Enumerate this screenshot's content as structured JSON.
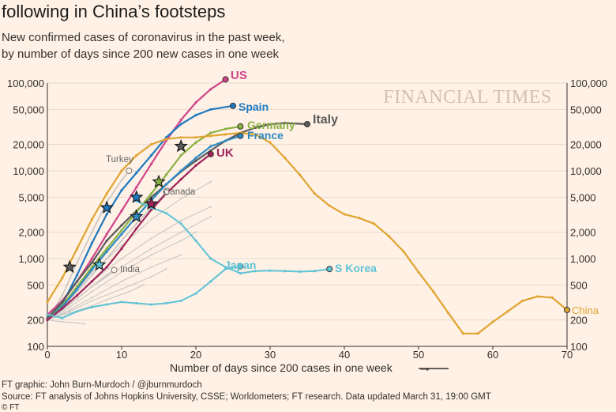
{
  "header": {
    "title": "following in China’s footsteps",
    "subtitle_line1": "New confirmed cases of coronavirus in the past week,",
    "subtitle_line2": "by number of days since 200 new cases in one week"
  },
  "watermark": "FINANCIAL TIMES",
  "footer": {
    "credit": "FT graphic: John Burn-Murdoch / @jburnmurdoch",
    "source": "Source: FT analysis of Johns Hopkins University, CSSE; Worldometers; FT research. Data updated March 31, 19:00 GMT",
    "copyright": "© FT"
  },
  "chart_data": {
    "type": "line",
    "title": "following in China’s footsteps",
    "xlabel": "Number of days since 200 cases in one week",
    "ylabel": "New confirmed cases in the past week",
    "xscale": "linear",
    "yscale": "log",
    "xlim": [
      0,
      70
    ],
    "ylim": [
      100,
      100000
    ],
    "xticks": [
      "0",
      "10",
      "20",
      "30",
      "40",
      "50",
      "60",
      "70"
    ],
    "yticks": [
      "100",
      "200",
      "500",
      "1,000",
      "2,000",
      "5,000",
      "10,000",
      "20,000",
      "50,000",
      "100,000"
    ],
    "ytick_values": [
      100,
      200,
      500,
      1000,
      2000,
      5000,
      10000,
      20000,
      50000,
      100000
    ],
    "grid": true,
    "series": [
      {
        "name": "US",
        "color": "#d0448a",
        "width": 2.2,
        "label": "US",
        "x": [
          0,
          2,
          4,
          6,
          8,
          10,
          12,
          14,
          16,
          18,
          20,
          22,
          24
        ],
        "y": [
          230,
          330,
          550,
          1000,
          1900,
          3500,
          6500,
          12000,
          22000,
          38000,
          60000,
          85000,
          110000
        ]
      },
      {
        "name": "Spain",
        "color": "#1f79c0",
        "width": 2.2,
        "label": "Spain",
        "x": [
          0,
          2,
          4,
          6,
          8,
          10,
          12,
          14,
          16,
          18,
          20,
          22,
          25
        ],
        "y": [
          200,
          300,
          650,
          1500,
          3200,
          6000,
          9500,
          15000,
          24000,
          34000,
          43000,
          50000,
          55000
        ]
      },
      {
        "name": "Italy",
        "color": "#5b5b5b",
        "width": 2.2,
        "label": "Italy",
        "x": [
          0,
          2,
          4,
          6,
          8,
          10,
          12,
          14,
          16,
          18,
          20,
          22,
          24,
          26,
          28,
          30,
          32,
          35
        ],
        "y": [
          210,
          320,
          550,
          900,
          1600,
          2400,
          3500,
          5000,
          7000,
          9800,
          13000,
          17000,
          22000,
          27000,
          31000,
          34000,
          35000,
          34000
        ]
      },
      {
        "name": "Germany",
        "color": "#8bb143",
        "width": 2.2,
        "label": "Germany",
        "x": [
          0,
          2,
          4,
          6,
          8,
          10,
          12,
          14,
          16,
          18,
          20,
          22,
          24,
          26
        ],
        "y": [
          200,
          290,
          480,
          800,
          1300,
          2100,
          3400,
          5500,
          9000,
          15000,
          21000,
          27000,
          30000,
          32000
        ]
      },
      {
        "name": "France",
        "color": "#2d8ac4",
        "width": 2.2,
        "label": "France",
        "x": [
          0,
          2,
          4,
          6,
          8,
          10,
          12,
          14,
          16,
          18,
          20,
          22,
          24,
          26
        ],
        "y": [
          200,
          280,
          450,
          750,
          1200,
          1900,
          3000,
          4600,
          7000,
          10000,
          14000,
          19000,
          22000,
          25000
        ]
      },
      {
        "name": "UK",
        "color": "#a0245c",
        "width": 2.2,
        "label": "UK",
        "x": [
          0,
          2,
          4,
          6,
          8,
          10,
          12,
          14,
          16,
          18,
          20,
          22
        ],
        "y": [
          200,
          270,
          380,
          550,
          800,
          1300,
          2200,
          3600,
          5500,
          8000,
          11500,
          15500
        ]
      },
      {
        "name": "China",
        "color": "#e0a431",
        "width": 2.2,
        "label": "China",
        "x": [
          0,
          2,
          4,
          6,
          8,
          10,
          12,
          14,
          16,
          18,
          20,
          22,
          24,
          26,
          28,
          30,
          32,
          34,
          36,
          38,
          40,
          42,
          44,
          46,
          48,
          50,
          52,
          54,
          56,
          58,
          60,
          62,
          64,
          66,
          68,
          70
        ],
        "y": [
          320,
          600,
          1300,
          2800,
          5500,
          10000,
          15000,
          20000,
          23000,
          24000,
          24000,
          25000,
          26000,
          27000,
          26000,
          21000,
          14000,
          9000,
          5500,
          4000,
          3200,
          2900,
          2500,
          1800,
          1200,
          700,
          420,
          240,
          140,
          140,
          190,
          250,
          330,
          370,
          360,
          260
        ]
      },
      {
        "name": "Japan",
        "color": "#5fc3d6",
        "width": 2.0,
        "label": "Japan",
        "x": [
          12,
          14,
          16,
          18,
          20,
          22,
          24,
          26,
          28,
          30,
          32,
          34,
          36,
          38
        ],
        "y": [
          4500,
          3800,
          3300,
          2500,
          1600,
          1000,
          800,
          680,
          720,
          730,
          720,
          710,
          720,
          760
        ]
      },
      {
        "name": "S Korea",
        "color": "#5fc3d6",
        "width": 2.0,
        "label": "S Korea",
        "x": [
          0,
          2,
          4,
          6,
          8,
          10,
          12,
          14,
          16,
          18,
          20,
          22,
          24,
          26
        ],
        "y": [
          230,
          210,
          250,
          280,
          300,
          320,
          310,
          300,
          310,
          330,
          400,
          550,
          760,
          820
        ]
      },
      {
        "name": "Turkey",
        "color": "#bdbdbd",
        "width": 1.3,
        "label": "Turkey",
        "x": [
          0,
          2,
          4,
          6,
          8,
          10,
          11
        ],
        "y": [
          200,
          380,
          900,
          2000,
          4400,
          7800,
          10000
        ]
      },
      {
        "name": "Canada",
        "color": "#bdbdbd",
        "width": 1.3,
        "label": "Canada",
        "x": [
          0,
          2,
          4,
          6,
          8,
          10,
          12,
          14,
          16
        ],
        "y": [
          200,
          280,
          420,
          650,
          1000,
          1600,
          2500,
          3800,
          5700
        ]
      },
      {
        "name": "India",
        "color": "#bdbdbd",
        "width": 1.3,
        "label": "India",
        "x": [
          0,
          2,
          4,
          6,
          8,
          9
        ],
        "y": [
          200,
          260,
          350,
          480,
          650,
          740
        ]
      },
      {
        "name": "Other 1",
        "color": "#c8c8c8",
        "width": 1.1,
        "label": "",
        "x": [
          0,
          3,
          6,
          10,
          14,
          18,
          22
        ],
        "y": [
          200,
          350,
          700,
          1400,
          2800,
          4800,
          7500
        ]
      },
      {
        "name": "Other 2",
        "color": "#c8c8c8",
        "width": 1.1,
        "label": "",
        "x": [
          0,
          3,
          6,
          10,
          14,
          18,
          22
        ],
        "y": [
          210,
          320,
          550,
          1000,
          1700,
          2700,
          3900
        ]
      },
      {
        "name": "Other 3",
        "color": "#c8c8c8",
        "width": 1.1,
        "label": "",
        "x": [
          0,
          3,
          6,
          10,
          14,
          18,
          20
        ],
        "y": [
          200,
          280,
          420,
          700,
          1100,
          1600,
          2000
        ]
      },
      {
        "name": "Other 4",
        "color": "#c8c8c8",
        "width": 1.1,
        "label": "",
        "x": [
          0,
          3,
          6,
          10,
          14,
          18
        ],
        "y": [
          200,
          260,
          360,
          550,
          800,
          1100
        ]
      },
      {
        "name": "Other 5",
        "color": "#c8c8c8",
        "width": 1.1,
        "label": "",
        "x": [
          0,
          3,
          6,
          10,
          14,
          16
        ],
        "y": [
          200,
          250,
          330,
          450,
          620,
          760
        ]
      },
      {
        "name": "Other 6",
        "color": "#c8c8c8",
        "width": 1.1,
        "label": "",
        "x": [
          0,
          3,
          6,
          8,
          11,
          13
        ],
        "y": [
          200,
          240,
          290,
          340,
          420,
          500
        ]
      },
      {
        "name": "Other 7",
        "color": "#c8c8c8",
        "width": 1.1,
        "label": "",
        "x": [
          0,
          2,
          4,
          5
        ],
        "y": [
          200,
          190,
          185,
          180
        ]
      },
      {
        "name": "Other 8",
        "color": "#c8c8c8",
        "width": 1.1,
        "label": "",
        "x": [
          0,
          3,
          6,
          10,
          14,
          18,
          22
        ],
        "y": [
          200,
          300,
          480,
          800,
          1300,
          2000,
          3000
        ]
      }
    ],
    "stars": [
      {
        "series": "Italy",
        "x": 3,
        "y": 800
      },
      {
        "series": "S Korea",
        "x": 7,
        "y": 850
      },
      {
        "series": "Spain",
        "x": 8,
        "y": 3800
      },
      {
        "series": "France",
        "x": 12,
        "y": 3000
      },
      {
        "series": "Spain",
        "x": 12,
        "y": 5000
      },
      {
        "series": "UK",
        "x": 14,
        "y": 4200
      },
      {
        "series": "Germany",
        "x": 15,
        "y": 7500
      },
      {
        "series": "Italy",
        "x": 18,
        "y": 19000
      }
    ],
    "annotations": {
      "arrow_label": "→"
    }
  }
}
